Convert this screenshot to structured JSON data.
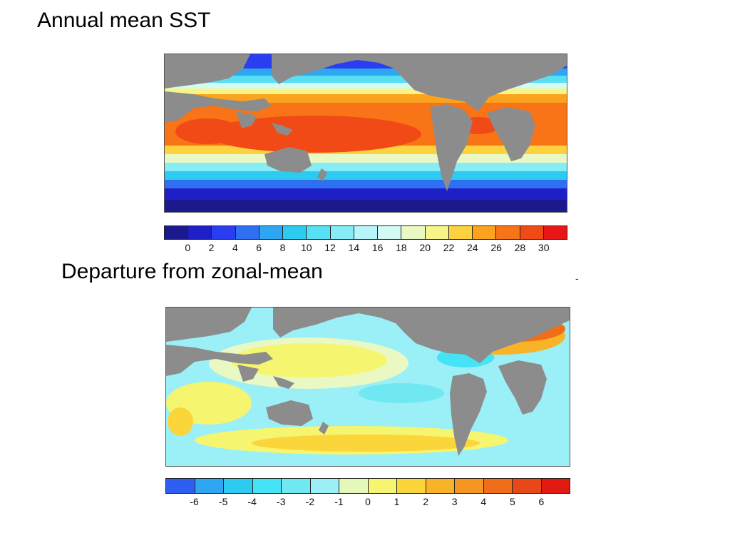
{
  "panels": [
    {
      "title": "Annual mean SST",
      "colorbar": {
        "colors": [
          "#1a1a8c",
          "#1f1fc8",
          "#2b3df0",
          "#2f6ff2",
          "#2ea6f2",
          "#2ccbef",
          "#57e0f3",
          "#86ecf6",
          "#b7f5fb",
          "#d4fbf3",
          "#eaf9c3",
          "#f7f58a",
          "#fcd23e",
          "#fba31e",
          "#f87417",
          "#f24a17",
          "#e81616"
        ],
        "tick_labels": [
          "0",
          "2",
          "4",
          "6",
          "8",
          "10",
          "12",
          "14",
          "16",
          "18",
          "20",
          "22",
          "24",
          "26",
          "28",
          "30"
        ]
      }
    },
    {
      "title": "Departure from zonal-mean",
      "colorbar": {
        "colors": [
          "#2f5ff2",
          "#2ea6f2",
          "#2ccbef",
          "#45e3f5",
          "#6fe8f2",
          "#9af0f6",
          "#e4f9b8",
          "#f6f56f",
          "#fbd63a",
          "#f9b329",
          "#f59522",
          "#f06e1a",
          "#e84717",
          "#e11b12"
        ],
        "tick_labels": [
          "-6",
          "-5",
          "-4",
          "-3",
          "-2",
          "-1",
          "0",
          "1",
          "2",
          "3",
          "4",
          "5",
          "6"
        ]
      }
    }
  ],
  "stray_mark": "-",
  "land_color": "#8c8c8c"
}
